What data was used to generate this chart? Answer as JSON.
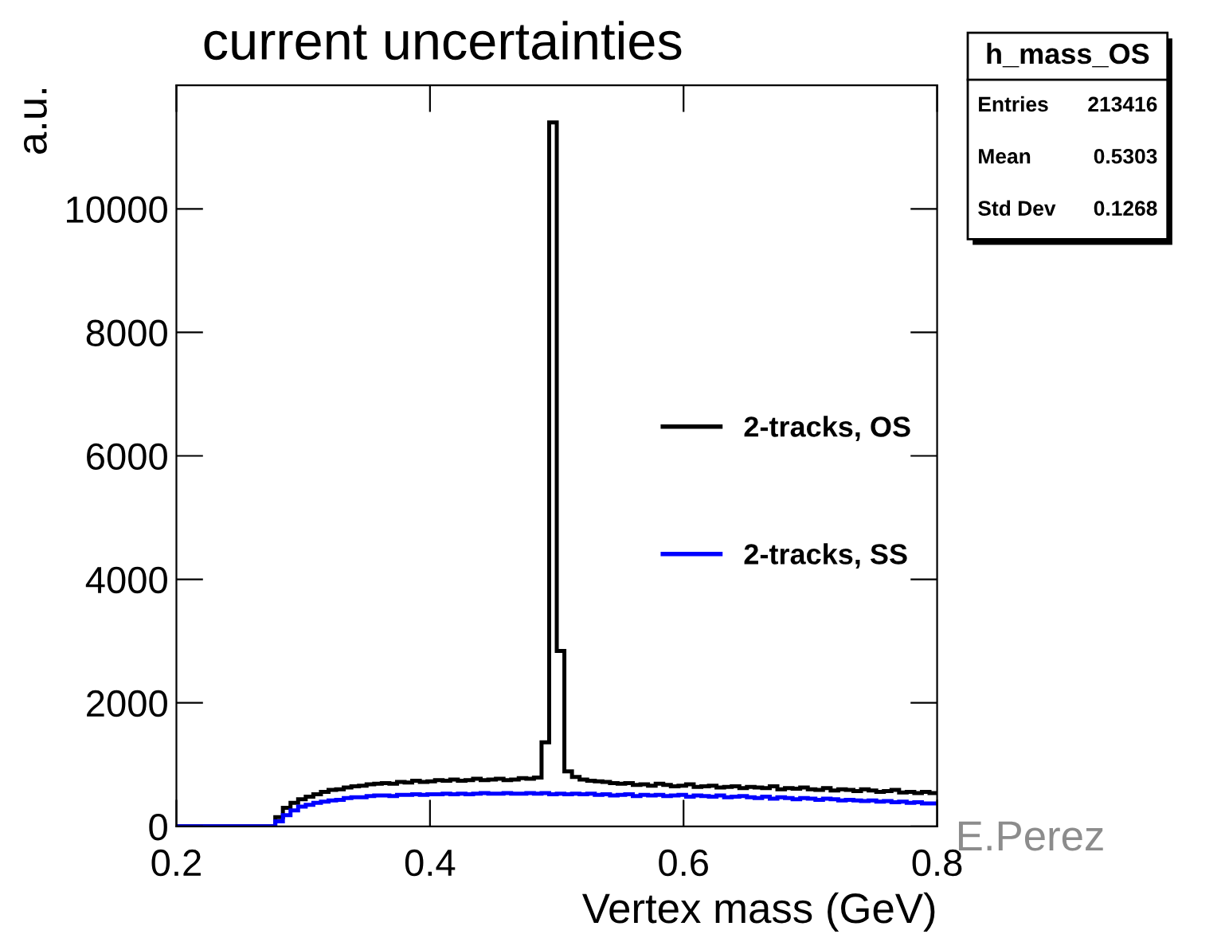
{
  "chart_data": {
    "type": "histogram",
    "title": "current uncertainties",
    "xlabel": "Vertex mass (GeV)",
    "ylabel": "a.u.",
    "bins": [
      0.2,
      0.206,
      0.212,
      0.218,
      0.224,
      0.23,
      0.236,
      0.242,
      0.248,
      0.254,
      0.26,
      0.266,
      0.272,
      0.278,
      0.284,
      0.29,
      0.296,
      0.302,
      0.308,
      0.314,
      0.32,
      0.326,
      0.332,
      0.338,
      0.344,
      0.35,
      0.356,
      0.362,
      0.368,
      0.374,
      0.38,
      0.386,
      0.392,
      0.398,
      0.404,
      0.41,
      0.416,
      0.422,
      0.428,
      0.434,
      0.44,
      0.446,
      0.452,
      0.458,
      0.464,
      0.47,
      0.476,
      0.482,
      0.488,
      0.494,
      0.5,
      0.506,
      0.512,
      0.518,
      0.524,
      0.53,
      0.536,
      0.542,
      0.548,
      0.554,
      0.56,
      0.566,
      0.572,
      0.578,
      0.584,
      0.59,
      0.596,
      0.602,
      0.608,
      0.614,
      0.62,
      0.626,
      0.632,
      0.638,
      0.644,
      0.65,
      0.656,
      0.662,
      0.668,
      0.674,
      0.68,
      0.686,
      0.692,
      0.698,
      0.704,
      0.71,
      0.716,
      0.722,
      0.728,
      0.734,
      0.74,
      0.746,
      0.752,
      0.758,
      0.764,
      0.77,
      0.776,
      0.782,
      0.788,
      0.794,
      0.8
    ],
    "series": [
      {
        "name": "2-tracks, OS",
        "color": "#000000",
        "values": [
          0,
          0,
          0,
          0,
          0,
          0,
          0,
          0,
          0,
          0,
          0,
          0,
          0,
          150,
          300,
          380,
          440,
          480,
          520,
          560,
          590,
          600,
          630,
          650,
          660,
          680,
          690,
          700,
          690,
          720,
          710,
          740,
          720,
          730,
          750,
          740,
          760,
          740,
          750,
          770,
          750,
          760,
          770,
          750,
          760,
          780,
          770,
          790,
          1360,
          11400,
          2840,
          890,
          800,
          760,
          740,
          730,
          720,
          700,
          690,
          700,
          670,
          680,
          660,
          690,
          670,
          650,
          660,
          680,
          640,
          650,
          660,
          630,
          640,
          650,
          620,
          640,
          630,
          620,
          650,
          600,
          620,
          610,
          630,
          600,
          590,
          620,
          580,
          600,
          590,
          570,
          600,
          580,
          560,
          570,
          590,
          550,
          560,
          540,
          560,
          540
        ]
      },
      {
        "name": "2-tracks, SS",
        "color": "#0000ff",
        "values": [
          0,
          0,
          0,
          0,
          0,
          0,
          0,
          0,
          0,
          0,
          0,
          0,
          0,
          80,
          180,
          260,
          320,
          350,
          380,
          400,
          420,
          430,
          460,
          470,
          470,
          490,
          500,
          500,
          490,
          510,
          510,
          520,
          510,
          520,
          520,
          530,
          520,
          530,
          520,
          530,
          540,
          530,
          530,
          540,
          530,
          530,
          540,
          530,
          540,
          520,
          530,
          520,
          530,
          520,
          530,
          510,
          520,
          500,
          510,
          520,
          490,
          510,
          500,
          510,
          490,
          500,
          510,
          480,
          500,
          490,
          480,
          500,
          470,
          480,
          490,
          470,
          460,
          480,
          450,
          470,
          460,
          440,
          460,
          450,
          430,
          450,
          440,
          420,
          430,
          420,
          410,
          420,
          400,
          410,
          390,
          400,
          380,
          390,
          370,
          370
        ]
      }
    ],
    "xlim": [
      0.2,
      0.8
    ],
    "xticks": [
      0.2,
      0.4,
      0.6,
      0.8
    ],
    "ylim": [
      0,
      12000
    ],
    "yticks": [
      0,
      2000,
      4000,
      6000,
      8000,
      10000
    ],
    "legend": "right",
    "grid": false,
    "annotations": [
      "h_mass_OS",
      "Entries",
      "213416",
      "Mean",
      "0.5303",
      "Std Dev",
      "0.1268",
      "E.Perez"
    ]
  }
}
